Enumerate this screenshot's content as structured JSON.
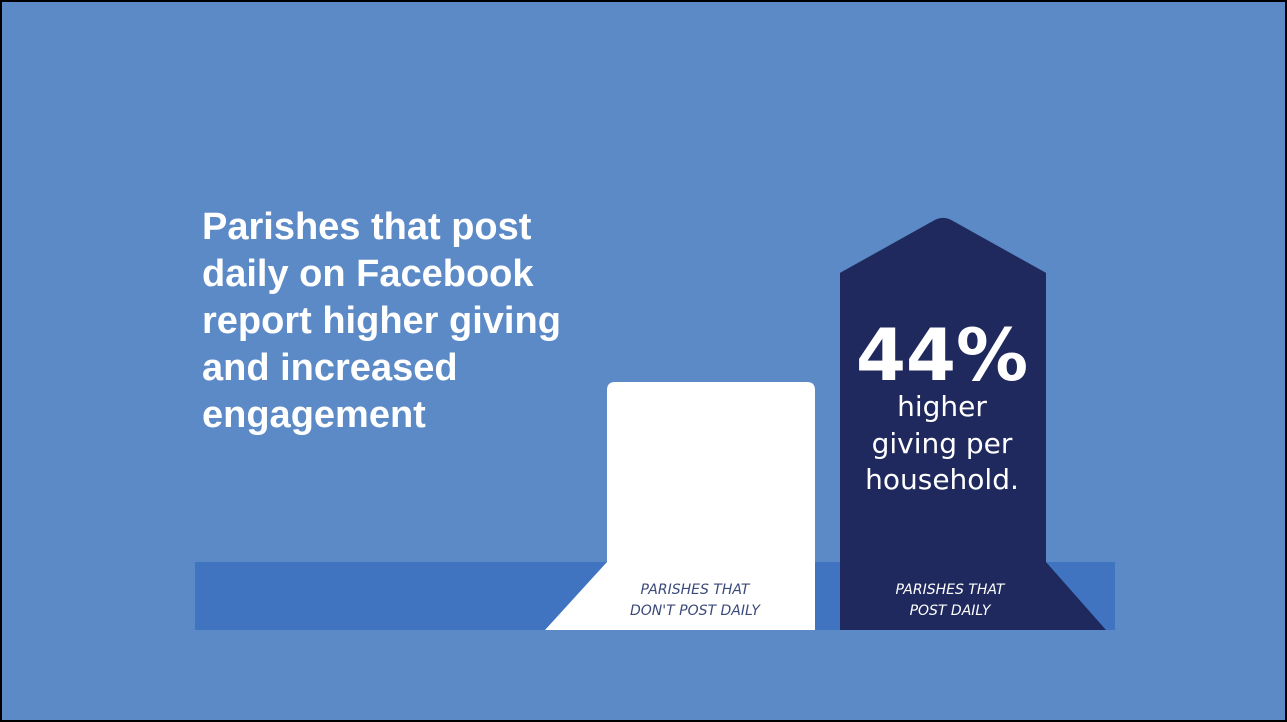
{
  "headline": {
    "lines": [
      "Parishes that post",
      "daily on Facebook",
      "report higher giving",
      "and increased",
      "engagement"
    ]
  },
  "colors": {
    "background": "#5b8ac6",
    "band": "#4074c1",
    "bar_not_daily": "#ffffff",
    "bar_daily": "#1f295d",
    "label_not_daily": "#3b4a7a",
    "label_daily": "#ffffff"
  },
  "chart_data": {
    "type": "bar",
    "categories": [
      {
        "line1": "PARISHES THAT",
        "line2": "DON'T POST DAILY"
      },
      {
        "line1": "PARISHES THAT",
        "line2": "POST DAILY"
      }
    ],
    "relative_values": [
      1.0,
      1.44
    ],
    "highlight": {
      "value": "44%",
      "caption_lines": [
        "higher",
        "giving per",
        "household."
      ]
    }
  }
}
